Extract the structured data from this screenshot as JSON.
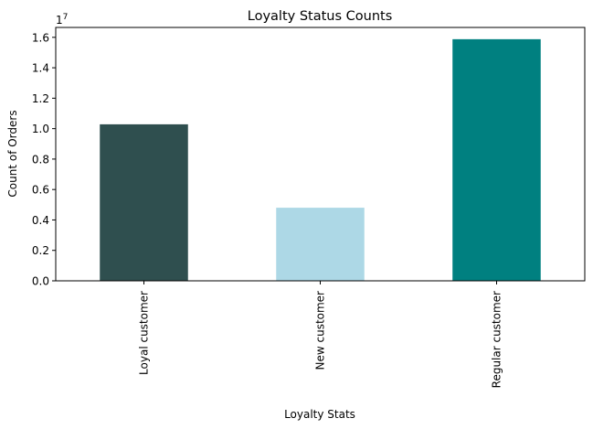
{
  "chart_data": {
    "type": "bar",
    "title": "Loyalty Status Counts",
    "xlabel": "Loyalty Stats",
    "ylabel": "Count of Orders",
    "scale_label": "1e7",
    "categories": [
      "Loyal customer",
      "New customer",
      "Regular customer"
    ],
    "values": [
      10284093,
      4803167,
      15876776
    ],
    "colors": [
      "#2f4f4f",
      "#add8e6",
      "#008080"
    ],
    "ylim": [
      0,
      16650000
    ],
    "yticks": [
      0,
      2000000,
      4000000,
      6000000,
      8000000,
      10000000,
      12000000,
      14000000,
      16000000
    ],
    "ytick_labels": [
      "0.0",
      "0.2",
      "0.4",
      "0.6",
      "0.8",
      "1.0",
      "1.2",
      "1.4",
      "1.6"
    ],
    "grid": false,
    "legend": false
  }
}
